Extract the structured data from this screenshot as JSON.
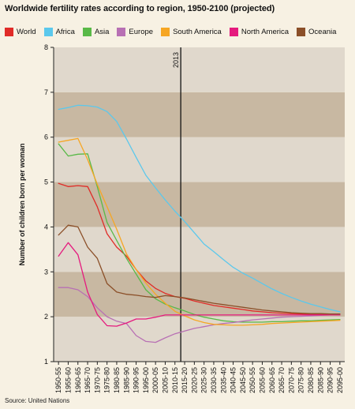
{
  "title": "Worldwide fertility rates according to region, 1950-2100 (projected)",
  "source": "Source: United Nations",
  "chart_data": {
    "type": "line",
    "title": "Worldwide fertility rates according to region, 1950-2100 (projected)",
    "xlabel": "",
    "ylabel": "Number of children born per woman",
    "ylim": [
      1,
      8
    ],
    "yticks": [
      1,
      2,
      3,
      4,
      5,
      6,
      7,
      8
    ],
    "grid": "alternating horizontal bands",
    "legend_position": "top",
    "annotation": {
      "label": "2013",
      "x_index": 12.6
    },
    "categories": [
      "1950-55",
      "1955-60",
      "1960-65",
      "1965-70",
      "1970-75",
      "1975-80",
      "1980-85",
      "1985-90",
      "1990-95",
      "1995-00",
      "2000-05",
      "2005-10",
      "2010-15",
      "2015-20",
      "2020-25",
      "2025-30",
      "2030-35",
      "2035-40",
      "2040-45",
      "2045-50",
      "2050-55",
      "2055-60",
      "2060-65",
      "2065-70",
      "2070-75",
      "2075-80",
      "2080-85",
      "2085-90",
      "2090-95",
      "2095-00"
    ],
    "series": [
      {
        "name": "World",
        "color": "#e02b27",
        "values": [
          4.97,
          4.9,
          4.92,
          4.9,
          4.45,
          3.85,
          3.55,
          3.35,
          3.05,
          2.8,
          2.63,
          2.52,
          2.45,
          2.41,
          2.35,
          2.3,
          2.25,
          2.22,
          2.19,
          2.16,
          2.13,
          2.11,
          2.09,
          2.08,
          2.07,
          2.06,
          2.05,
          2.05,
          2.04,
          2.04
        ]
      },
      {
        "name": "Africa",
        "color": "#5bc8ec",
        "values": [
          6.62,
          6.66,
          6.71,
          6.7,
          6.67,
          6.57,
          6.35,
          5.96,
          5.55,
          5.15,
          4.87,
          4.6,
          4.35,
          4.12,
          3.87,
          3.62,
          3.45,
          3.27,
          3.1,
          2.97,
          2.86,
          2.74,
          2.62,
          2.52,
          2.43,
          2.35,
          2.28,
          2.22,
          2.16,
          2.11
        ]
      },
      {
        "name": "Asia",
        "color": "#59b947",
        "values": [
          5.85,
          5.58,
          5.62,
          5.63,
          4.9,
          4.1,
          3.7,
          3.3,
          2.95,
          2.6,
          2.4,
          2.28,
          2.2,
          2.13,
          2.05,
          1.99,
          1.95,
          1.91,
          1.89,
          1.88,
          1.88,
          1.88,
          1.89,
          1.89,
          1.9,
          1.91,
          1.91,
          1.92,
          1.93,
          1.94
        ]
      },
      {
        "name": "Europe",
        "color": "#b870b4",
        "values": [
          2.65,
          2.65,
          2.6,
          2.45,
          2.2,
          2.0,
          1.9,
          1.85,
          1.58,
          1.45,
          1.43,
          1.53,
          1.62,
          1.68,
          1.74,
          1.78,
          1.82,
          1.85,
          1.87,
          1.9,
          1.93,
          1.95,
          1.97,
          1.99,
          2.0,
          2.01,
          2.02,
          2.03,
          2.04,
          2.05
        ]
      },
      {
        "name": "South America",
        "color": "#f6a623",
        "values": [
          5.89,
          5.93,
          5.97,
          5.5,
          4.95,
          4.45,
          3.95,
          3.4,
          3.05,
          2.75,
          2.5,
          2.3,
          2.12,
          2.02,
          1.93,
          1.87,
          1.83,
          1.82,
          1.81,
          1.81,
          1.82,
          1.83,
          1.85,
          1.86,
          1.87,
          1.88,
          1.89,
          1.9,
          1.91,
          1.92
        ]
      },
      {
        "name": "North America",
        "color": "#e51a7e",
        "values": [
          3.35,
          3.65,
          3.38,
          2.55,
          2.05,
          1.8,
          1.79,
          1.86,
          1.95,
          1.95,
          1.99,
          2.04,
          2.04,
          2.04,
          2.04,
          2.04,
          2.04,
          2.04,
          2.04,
          2.04,
          2.04,
          2.04,
          2.04,
          2.04,
          2.04,
          2.04,
          2.04,
          2.04,
          2.04,
          2.04
        ]
      },
      {
        "name": "Oceania",
        "color": "#8b4f28",
        "values": [
          3.82,
          4.04,
          4.0,
          3.55,
          3.3,
          2.74,
          2.55,
          2.5,
          2.48,
          2.45,
          2.43,
          2.47,
          2.45,
          2.42,
          2.38,
          2.34,
          2.3,
          2.27,
          2.24,
          2.21,
          2.18,
          2.15,
          2.13,
          2.11,
          2.09,
          2.08,
          2.07,
          2.07,
          2.06,
          2.06
        ]
      }
    ]
  }
}
